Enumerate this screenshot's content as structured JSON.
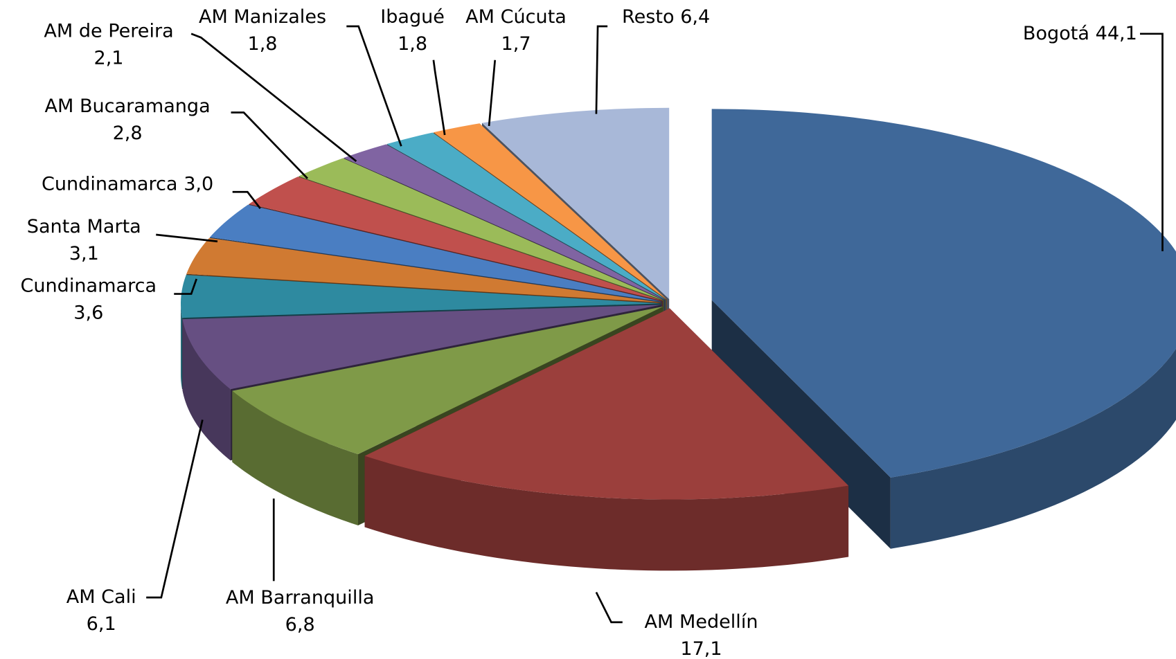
{
  "chart_data": {
    "type": "pie3d",
    "categories": [
      "Bogotá",
      "AM Medellín",
      "AM Barranquilla",
      "AM Cali",
      "Cundinamarca",
      "Santa Marta",
      "Cundinamarca",
      "AM Bucaramanga",
      "AM de Pereira",
      "AM Manizales",
      "Ibagué",
      "AM Cúcuta",
      "Resto"
    ],
    "values": [
      44.1,
      17.1,
      6.8,
      6.1,
      3.6,
      3.1,
      3.0,
      2.8,
      2.1,
      1.8,
      1.8,
      1.7,
      6.4
    ],
    "value_labels": [
      "44,1",
      "17,1",
      "6,8",
      "6,1",
      "3,6",
      "3,1",
      "3,0",
      "2,8",
      "2,1",
      "1,8",
      "1,8",
      "1,7",
      "6,4"
    ],
    "colors": [
      "#3f6899",
      "#9b3f3c",
      "#7f9a48",
      "#664f82",
      "#2e8aa0",
      "#d07a32",
      "#4a7ec2",
      "#c0504d",
      "#9bbb59",
      "#8064a2",
      "#4bacc6",
      "#f79646",
      "#a8b8d8"
    ]
  }
}
